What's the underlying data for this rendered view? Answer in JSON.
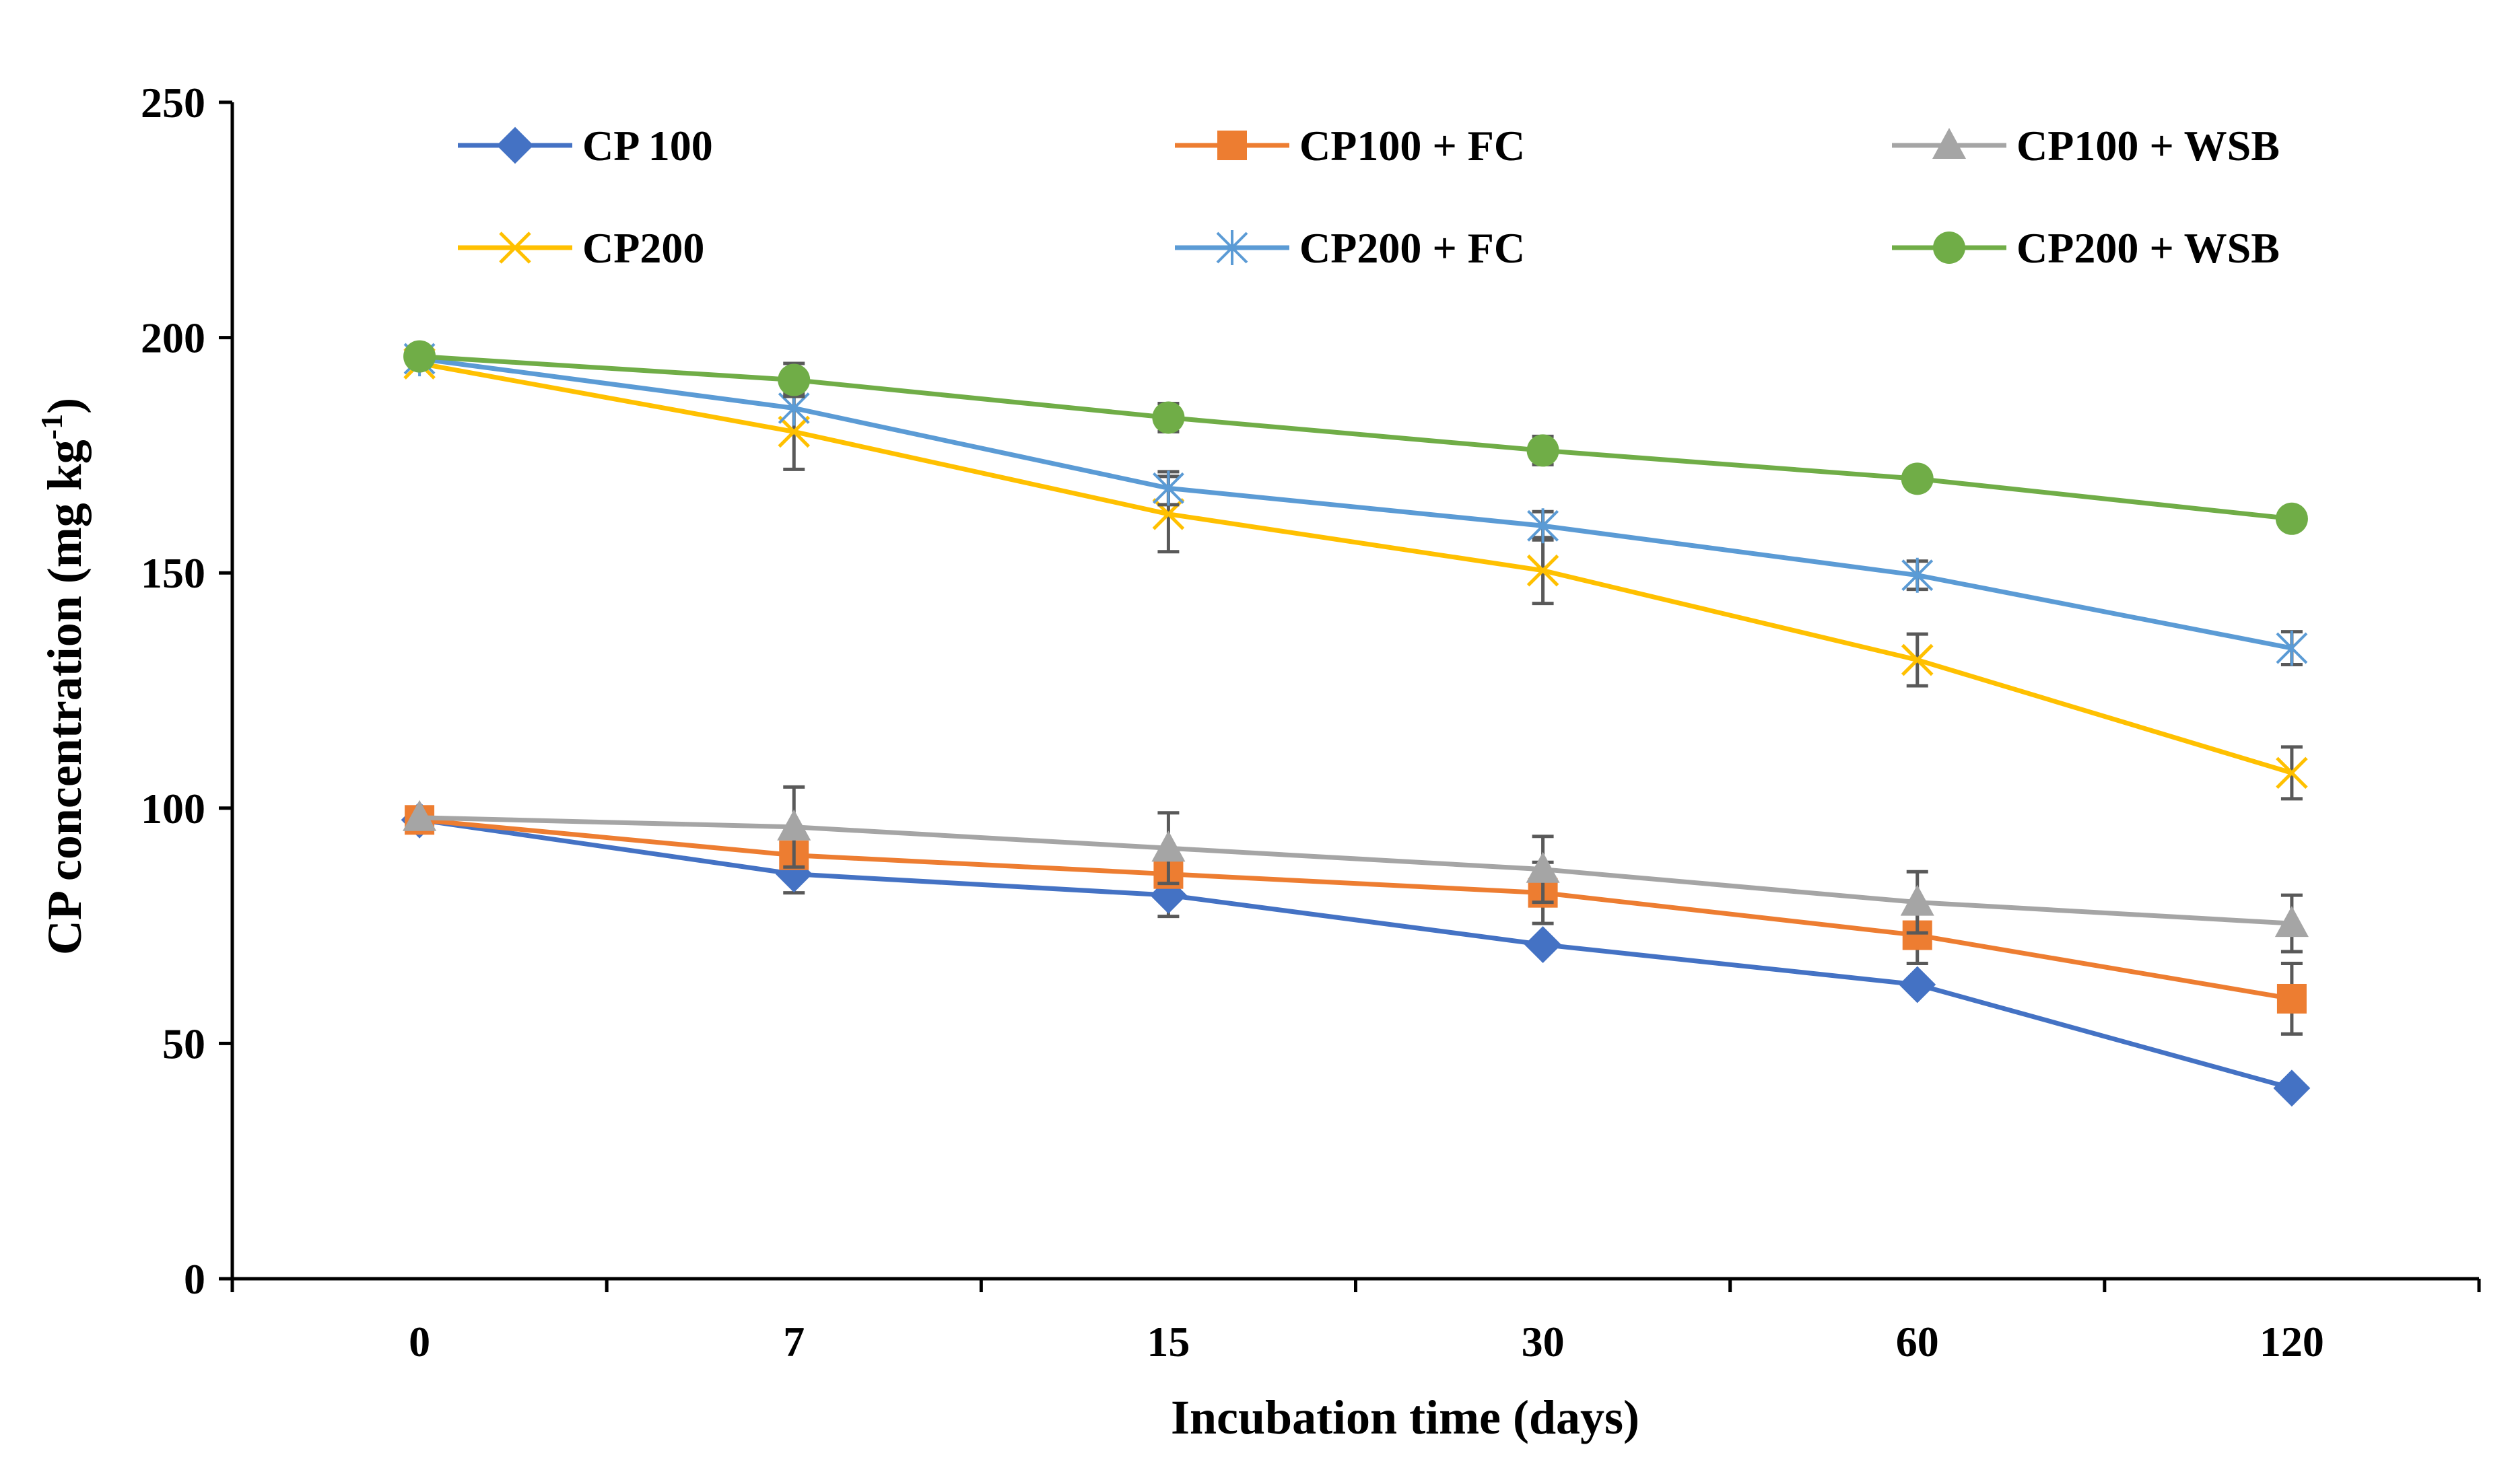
{
  "chart_data": {
    "type": "line",
    "title": "",
    "xlabel": "Incubation time (days)",
    "ylabel_main": "CP concentration (mg kg",
    "ylabel_sup": "-1",
    "ylabel_close": ")",
    "categories": [
      "0",
      "7",
      "15",
      "30",
      "60",
      "120"
    ],
    "ylim": [
      0,
      250
    ],
    "yticks": [
      0,
      50,
      100,
      150,
      200,
      250
    ],
    "legend_position": "top",
    "series": [
      {
        "name": "CP 100",
        "color": "#4472C4",
        "marker": "diamond",
        "values": [
          97.5,
          86,
          81.5,
          71,
          62.5,
          40.5
        ],
        "errors": [
          0,
          4,
          4.5,
          0,
          0,
          0
        ]
      },
      {
        "name": "CP100 + FC",
        "color": "#ED7D31",
        "marker": "square",
        "values": [
          97.5,
          90,
          86,
          82,
          73,
          59.5
        ],
        "errors": [
          0,
          0,
          0,
          6.5,
          6,
          7.5
        ]
      },
      {
        "name": "CP100 + WSB",
        "color": "#A5A5A5",
        "marker": "triangle",
        "values": [
          98,
          96,
          91.5,
          87,
          80,
          75.5
        ],
        "errors": [
          0,
          8.5,
          7.5,
          7,
          6.5,
          6
        ]
      },
      {
        "name": "CP200",
        "color": "#FFC000",
        "marker": "x",
        "values": [
          194.5,
          180,
          162.5,
          150.5,
          131.5,
          107.5
        ],
        "errors": [
          0,
          8,
          8,
          7,
          5.5,
          5.5
        ]
      },
      {
        "name": "CP200 + FC",
        "color": "#5B9BD5",
        "marker": "star",
        "values": [
          195.5,
          185,
          168,
          160,
          149.5,
          134
        ],
        "errors": [
          0,
          0,
          3.5,
          3,
          3,
          3.5
        ]
      },
      {
        "name": "CP200 + WSB",
        "color": "#70AD47",
        "marker": "circle",
        "values": [
          196,
          191,
          183,
          176,
          170,
          161.5
        ],
        "errors": [
          0,
          3.5,
          3,
          3,
          0,
          0
        ]
      }
    ]
  }
}
